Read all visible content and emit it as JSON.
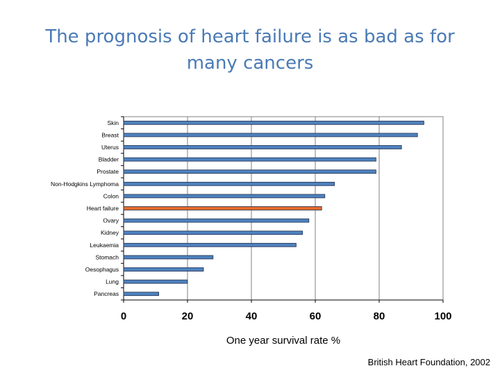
{
  "slide": {
    "title_line1": "The prognosis of heart failure is as bad as for",
    "title_line2": "many cancers",
    "source": "British Heart Foundation, 2002"
  },
  "chart_data": {
    "type": "bar",
    "orientation": "horizontal",
    "categories": [
      "Skin",
      "Breast",
      "Uterus",
      "Bladder",
      "Prostate",
      "Non-Hodgkins Lymphoma",
      "Colon",
      "Heart failure",
      "Ovary",
      "Kidney",
      "Leukaemia",
      "Stomach",
      "Oesophagus",
      "Lung",
      "Pancreas"
    ],
    "values": [
      94,
      92,
      87,
      79,
      79,
      66,
      63,
      62,
      58,
      56,
      54,
      28,
      25,
      20,
      11
    ],
    "highlight_category": "Heart failure",
    "colors": {
      "bar": "#4f81bd",
      "highlight": "#e46c2a",
      "bar_edge": "#1f2f4f"
    },
    "xlabel": "One year survival rate %",
    "xlim": [
      0,
      100
    ],
    "xticks": [
      0,
      20,
      40,
      60,
      80,
      100
    ],
    "grid": "vertical"
  }
}
